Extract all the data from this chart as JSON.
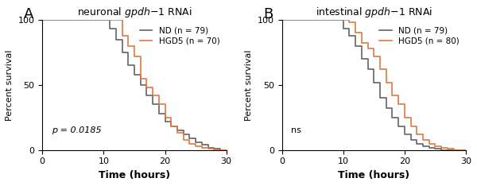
{
  "panel_A": {
    "title_plain": "neuronal ",
    "title_italic": "gpdh-1",
    "title_end": " RNAi",
    "label": "A",
    "nd_label": "ND (n = 79)",
    "hgd5_label": "HGD5 (n = 70)",
    "stat_text": "p = 0.0185",
    "stat_italic": true,
    "nd_color": "#636363",
    "hgd5_color": "#E07840",
    "xlim": [
      0,
      30
    ],
    "xticks": [
      0,
      10,
      20,
      30
    ],
    "nd_times": [
      0,
      10,
      11,
      12,
      13,
      14,
      15,
      16,
      17,
      18,
      19,
      20,
      21,
      22,
      23,
      24,
      25,
      26,
      27,
      28,
      29,
      30
    ],
    "nd_surv": [
      100,
      100,
      93,
      85,
      75,
      65,
      58,
      50,
      42,
      35,
      28,
      22,
      18,
      15,
      12,
      9,
      6,
      4,
      2,
      1,
      0,
      0
    ],
    "hgd5_times": [
      0,
      12,
      13,
      14,
      15,
      16,
      17,
      18,
      19,
      20,
      21,
      22,
      23,
      24,
      25,
      26,
      27,
      28,
      30
    ],
    "hgd5_surv": [
      100,
      100,
      88,
      80,
      72,
      55,
      48,
      42,
      35,
      25,
      18,
      13,
      8,
      5,
      3,
      2,
      1,
      0,
      0
    ]
  },
  "panel_B": {
    "title_plain": "intestinal ",
    "title_italic": "gpdh-1",
    "title_end": " RNAi",
    "label": "B",
    "nd_label": "ND (n = 79)",
    "hgd5_label": "HGD5 (n = 80)",
    "stat_text": "ns",
    "stat_italic": false,
    "nd_color": "#636363",
    "hgd5_color": "#E07840",
    "xlim": [
      0,
      30
    ],
    "xticks": [
      0,
      10,
      20,
      30
    ],
    "nd_times": [
      0,
      9,
      10,
      11,
      12,
      13,
      14,
      15,
      16,
      17,
      18,
      19,
      20,
      21,
      22,
      23,
      24,
      25,
      26,
      27,
      28,
      30
    ],
    "nd_surv": [
      100,
      100,
      93,
      88,
      80,
      70,
      62,
      52,
      40,
      32,
      25,
      18,
      12,
      8,
      5,
      3,
      2,
      1,
      0,
      0,
      0,
      0
    ],
    "hgd5_times": [
      0,
      10,
      11,
      12,
      13,
      14,
      15,
      16,
      17,
      18,
      19,
      20,
      21,
      22,
      23,
      24,
      25,
      26,
      27,
      28,
      30
    ],
    "hgd5_surv": [
      100,
      100,
      98,
      90,
      82,
      78,
      72,
      62,
      52,
      42,
      35,
      25,
      18,
      12,
      8,
      5,
      3,
      2,
      1,
      0,
      0
    ]
  },
  "ylabel": "Percent survival",
  "xlabel": "Time (hours)",
  "ylim": [
    0,
    100
  ],
  "yticks": [
    0,
    50,
    100
  ],
  "bg_color": "#ffffff"
}
